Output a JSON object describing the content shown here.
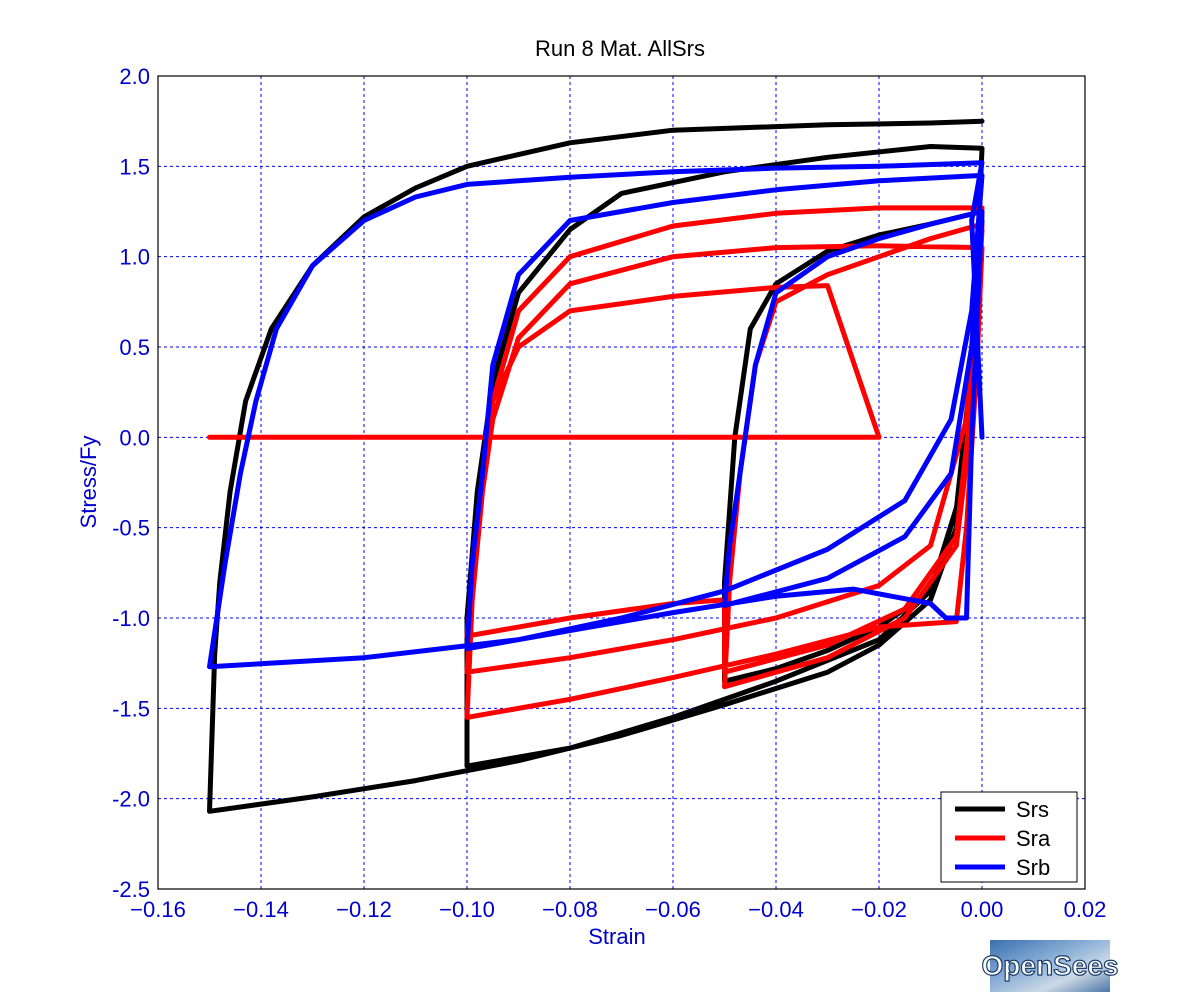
{
  "chart_data": {
    "type": "line",
    "title": "Run 8    Mat. AllSrs",
    "xlabel": "Strain",
    "ylabel": "Stress/Fy",
    "xlim": [
      -0.16,
      0.02
    ],
    "ylim": [
      -2.5,
      2.0
    ],
    "xticks": [
      -0.16,
      -0.14,
      -0.12,
      -0.1,
      -0.08,
      -0.06,
      -0.04,
      -0.02,
      0.0,
      0.02
    ],
    "xtick_labels": [
      "−0.16",
      "−0.14",
      "−0.12",
      "−0.10",
      "−0.08",
      "−0.06",
      "−0.04",
      "−0.02",
      "0.00",
      "0.02"
    ],
    "yticks": [
      2.0,
      1.5,
      1.0,
      0.5,
      0.0,
      -0.5,
      -1.0,
      -1.5,
      -2.0,
      -2.5
    ],
    "ytick_labels": [
      "2.0",
      "1.5",
      "1.0",
      "0.5",
      "0.0",
      "-0.5",
      "-1.0",
      "-1.5",
      "-2.0",
      "-2.5"
    ],
    "grid": true,
    "legend_position": "bottom-right",
    "series": [
      {
        "name": "Srs",
        "color": "#000000",
        "points": [
          [
            0.0,
            1.75
          ],
          [
            -0.01,
            1.74
          ],
          [
            -0.03,
            1.73
          ],
          [
            -0.06,
            1.7
          ],
          [
            -0.08,
            1.63
          ],
          [
            -0.1,
            1.5
          ],
          [
            -0.11,
            1.38
          ],
          [
            -0.12,
            1.22
          ],
          [
            -0.13,
            0.95
          ],
          [
            -0.138,
            0.6
          ],
          [
            -0.143,
            0.2
          ],
          [
            -0.146,
            -0.3
          ],
          [
            -0.148,
            -0.8
          ],
          [
            -0.149,
            -1.2
          ],
          [
            -0.15,
            -2.07
          ],
          [
            -0.13,
            -1.99
          ],
          [
            -0.11,
            -1.9
          ],
          [
            -0.09,
            -1.79
          ],
          [
            -0.07,
            -1.65
          ],
          [
            -0.05,
            -1.48
          ],
          [
            -0.03,
            -1.3
          ],
          [
            -0.02,
            -1.15
          ],
          [
            -0.01,
            -0.9
          ],
          [
            -0.005,
            -0.5
          ],
          [
            -0.002,
            0.2
          ],
          [
            0.0,
            1.6
          ],
          [
            -0.01,
            1.61
          ],
          [
            -0.03,
            1.55
          ],
          [
            -0.05,
            1.47
          ],
          [
            -0.07,
            1.35
          ],
          [
            -0.08,
            1.15
          ],
          [
            -0.09,
            0.8
          ],
          [
            -0.095,
            0.3
          ],
          [
            -0.098,
            -0.3
          ],
          [
            -0.1,
            -1.0
          ],
          [
            -0.1,
            -1.82
          ],
          [
            -0.08,
            -1.72
          ],
          [
            -0.06,
            -1.55
          ],
          [
            -0.04,
            -1.35
          ],
          [
            -0.02,
            -1.12
          ],
          [
            -0.01,
            -0.85
          ],
          [
            -0.004,
            -0.3
          ],
          [
            -0.001,
            0.6
          ],
          [
            0.0,
            1.25
          ],
          [
            -0.01,
            1.18
          ],
          [
            -0.02,
            1.12
          ],
          [
            -0.03,
            1.03
          ],
          [
            -0.04,
            0.85
          ],
          [
            -0.045,
            0.6
          ],
          [
            -0.048,
            0.0
          ],
          [
            -0.05,
            -0.8
          ],
          [
            -0.05,
            -1.35
          ],
          [
            -0.04,
            -1.28
          ],
          [
            -0.03,
            -1.18
          ],
          [
            -0.02,
            -1.05
          ],
          [
            -0.01,
            -0.85
          ],
          [
            -0.005,
            -0.4
          ],
          [
            -0.002,
            0.4
          ],
          [
            0.0,
            1.2
          ]
        ]
      },
      {
        "name": "Sra",
        "color": "#ff0000",
        "points": [
          [
            -0.15,
            0.0
          ],
          [
            -0.02,
            0.0
          ],
          [
            -0.03,
            0.84
          ],
          [
            -0.04,
            0.83
          ],
          [
            -0.06,
            0.78
          ],
          [
            -0.08,
            0.7
          ],
          [
            -0.09,
            0.5
          ],
          [
            -0.095,
            0.2
          ],
          [
            -0.097,
            -0.3
          ],
          [
            -0.099,
            -0.9
          ],
          [
            -0.1,
            -1.55
          ],
          [
            -0.08,
            -1.45
          ],
          [
            -0.06,
            -1.33
          ],
          [
            -0.04,
            -1.2
          ],
          [
            -0.02,
            -1.05
          ],
          [
            -0.005,
            -1.02
          ],
          [
            -0.003,
            -0.5
          ],
          [
            -0.001,
            0.4
          ],
          [
            0.0,
            1.05
          ],
          [
            -0.02,
            1.06
          ],
          [
            -0.04,
            1.05
          ],
          [
            -0.06,
            1.0
          ],
          [
            -0.08,
            0.85
          ],
          [
            -0.09,
            0.55
          ],
          [
            -0.095,
            0.1
          ],
          [
            -0.098,
            -0.5
          ],
          [
            -0.1,
            -1.3
          ],
          [
            -0.08,
            -1.22
          ],
          [
            -0.06,
            -1.12
          ],
          [
            -0.04,
            -1.0
          ],
          [
            -0.02,
            -0.82
          ],
          [
            -0.01,
            -0.6
          ],
          [
            -0.003,
            0.1
          ],
          [
            0.0,
            1.27
          ],
          [
            -0.02,
            1.27
          ],
          [
            -0.04,
            1.24
          ],
          [
            -0.06,
            1.17
          ],
          [
            -0.08,
            1.0
          ],
          [
            -0.09,
            0.7
          ],
          [
            -0.095,
            0.2
          ],
          [
            -0.098,
            -0.5
          ],
          [
            -0.1,
            -1.1
          ],
          [
            -0.08,
            -1.0
          ],
          [
            -0.06,
            -0.92
          ],
          [
            -0.05,
            -0.9
          ],
          [
            -0.05,
            -1.3
          ],
          [
            -0.03,
            -1.15
          ],
          [
            -0.015,
            -0.95
          ],
          [
            -0.005,
            -0.55
          ],
          [
            -0.002,
            0.2
          ],
          [
            0.0,
            1.18
          ],
          [
            -0.01,
            1.1
          ],
          [
            -0.02,
            1.0
          ],
          [
            -0.03,
            0.9
          ],
          [
            -0.04,
            0.75
          ],
          [
            -0.044,
            0.4
          ],
          [
            -0.047,
            -0.2
          ],
          [
            -0.049,
            -0.8
          ],
          [
            -0.05,
            -1.38
          ],
          [
            -0.03,
            -1.22
          ],
          [
            -0.015,
            -1.0
          ],
          [
            -0.005,
            -0.6
          ],
          [
            -0.002,
            0.1
          ],
          [
            0.0,
            1.15
          ]
        ]
      },
      {
        "name": "Srb",
        "color": "#0000ff",
        "points": [
          [
            0.0,
            0.0
          ],
          [
            -0.001,
            0.6
          ],
          [
            -0.002,
            1.2
          ],
          [
            0.0,
            1.52
          ],
          [
            -0.02,
            1.5
          ],
          [
            -0.04,
            1.49
          ],
          [
            -0.06,
            1.47
          ],
          [
            -0.08,
            1.44
          ],
          [
            -0.1,
            1.4
          ],
          [
            -0.11,
            1.33
          ],
          [
            -0.12,
            1.2
          ],
          [
            -0.13,
            0.95
          ],
          [
            -0.137,
            0.6
          ],
          [
            -0.141,
            0.2
          ],
          [
            -0.144,
            -0.2
          ],
          [
            -0.147,
            -0.7
          ],
          [
            -0.15,
            -1.27
          ],
          [
            -0.12,
            -1.22
          ],
          [
            -0.09,
            -1.12
          ],
          [
            -0.07,
            -1.0
          ],
          [
            -0.05,
            -0.85
          ],
          [
            -0.03,
            -0.62
          ],
          [
            -0.015,
            -0.35
          ],
          [
            -0.006,
            0.1
          ],
          [
            -0.002,
            0.7
          ],
          [
            0.0,
            1.45
          ],
          [
            -0.02,
            1.42
          ],
          [
            -0.04,
            1.37
          ],
          [
            -0.06,
            1.3
          ],
          [
            -0.08,
            1.2
          ],
          [
            -0.09,
            0.9
          ],
          [
            -0.095,
            0.4
          ],
          [
            -0.097,
            -0.2
          ],
          [
            -0.099,
            -0.7
          ],
          [
            -0.1,
            -1.17
          ],
          [
            -0.08,
            -1.07
          ],
          [
            -0.06,
            -0.97
          ],
          [
            -0.04,
            -0.88
          ],
          [
            -0.025,
            -0.84
          ],
          [
            -0.01,
            -0.92
          ],
          [
            -0.007,
            -1.0
          ],
          [
            -0.003,
            -1.0
          ],
          [
            -0.002,
            0.0
          ],
          [
            0.0,
            1.25
          ],
          [
            -0.01,
            1.18
          ],
          [
            -0.02,
            1.1
          ],
          [
            -0.03,
            1.0
          ],
          [
            -0.04,
            0.8
          ],
          [
            -0.044,
            0.4
          ],
          [
            -0.047,
            -0.2
          ],
          [
            -0.049,
            -0.6
          ],
          [
            -0.05,
            -0.93
          ],
          [
            -0.03,
            -0.78
          ],
          [
            -0.015,
            -0.55
          ],
          [
            -0.006,
            -0.2
          ],
          [
            -0.002,
            0.5
          ],
          [
            0.0,
            1.2
          ]
        ]
      }
    ]
  },
  "logo_text": "OpenSees"
}
